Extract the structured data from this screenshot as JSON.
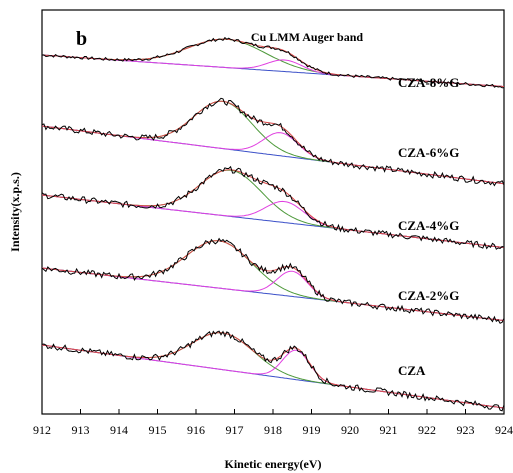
{
  "chart_data": {
    "type": "line",
    "panel_label": "b",
    "title": "Cu LMM Auger band",
    "xlabel": "Kinetic energy(eV)",
    "ylabel": "Intensity(x.p.s.)",
    "xlim": [
      912,
      924
    ],
    "x_ticks": [
      "912",
      "913",
      "914",
      "915",
      "916",
      "917",
      "918",
      "919",
      "920",
      "921",
      "922",
      "923",
      "924"
    ],
    "grid": false,
    "colors": {
      "raw": "#000000",
      "fit_envelope": "#d94a4a",
      "peak1": "#4f9a3c",
      "peak2": "#e040e0",
      "background": "#3a4fc8"
    },
    "series": [
      {
        "name": "CZA-8%G",
        "peak1_center": 916.8,
        "peak1_height": 0.27,
        "peak1_width": 1.0,
        "peak2_center": 918.3,
        "peak2_height": 0.11,
        "peak2_width": 0.45,
        "baseline_start": 0.0,
        "baseline_end": -0.3,
        "noise_level": 0.015
      },
      {
        "name": "CZA-6%G",
        "peak1_center": 916.7,
        "peak1_height": 0.45,
        "peak1_width": 0.75,
        "peak2_center": 918.2,
        "peak2_height": 0.22,
        "peak2_width": 0.45,
        "baseline_start": 0.0,
        "baseline_end": -0.55,
        "noise_level": 0.03
      },
      {
        "name": "CZA-4%G",
        "peak1_center": 916.9,
        "peak1_height": 0.44,
        "peak1_width": 0.8,
        "peak2_center": 918.3,
        "peak2_height": 0.2,
        "peak2_width": 0.5,
        "baseline_start": 0.0,
        "baseline_end": -0.5,
        "noise_level": 0.03
      },
      {
        "name": "CZA-2%G",
        "peak1_center": 916.6,
        "peak1_height": 0.45,
        "peak1_width": 0.85,
        "peak2_center": 918.5,
        "peak2_height": 0.24,
        "peak2_width": 0.4,
        "baseline_start": 0.0,
        "baseline_end": -0.5,
        "noise_level": 0.03
      },
      {
        "name": "CZA",
        "peak1_center": 916.7,
        "peak1_height": 0.35,
        "peak1_width": 0.8,
        "peak2_center": 918.6,
        "peak2_height": 0.28,
        "peak2_width": 0.35,
        "baseline_start": 0.0,
        "baseline_end": -0.6,
        "noise_level": 0.03
      }
    ]
  }
}
